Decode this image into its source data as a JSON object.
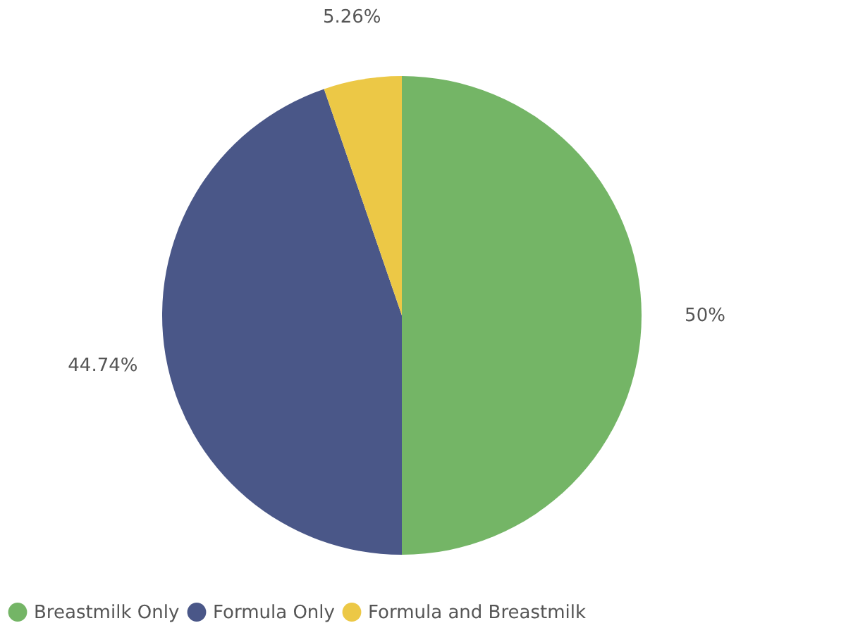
{
  "chart_data": {
    "type": "pie",
    "categories": [
      "Breastmilk Only",
      "Formula Only",
      "Formula and Breastmilk"
    ],
    "values": [
      50,
      44.74,
      5.26
    ],
    "colors": [
      "#74b566",
      "#4a5788",
      "#ecc846"
    ],
    "value_labels": [
      "50%",
      "44.74%",
      "5.26%"
    ],
    "legend": "bottom"
  }
}
